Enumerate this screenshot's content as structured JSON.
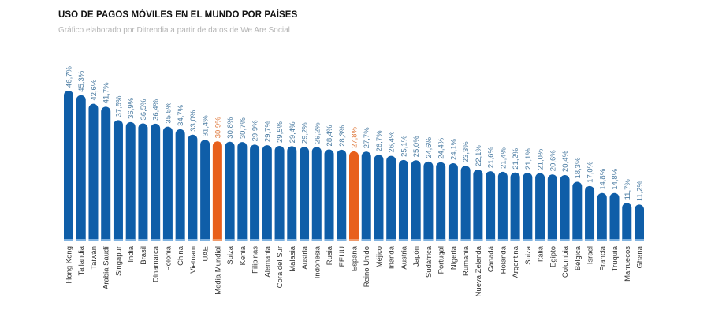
{
  "chart_data": {
    "type": "bar",
    "title": "USO DE PAGOS MÓVILES EN EL MUNDO POR PAÍSES",
    "subtitle": "Gráfico elaborado por Ditrendia a partir de datos de We Are Social",
    "xlabel": "",
    "ylabel": "",
    "ylim": [
      0,
      50
    ],
    "grid": false,
    "categories": [
      "Hong Kong",
      "Tailandia",
      "Taiwán",
      "Arabia Saudí",
      "Singapur",
      "India",
      "Brasil",
      "Dinamarca",
      "Polonia",
      "China",
      "Vietnam",
      "UAE",
      "Media Mundial",
      "Suiza",
      "Kenia",
      "Filipinas",
      "Alemania",
      "Cora del Sur",
      "Malasia",
      "Austria",
      "Indonesia",
      "Rusia",
      "EEUU",
      "España",
      "Reino Unido",
      "Méjico",
      "Irlanda",
      "Austria",
      "Japón",
      "Sudáfrica",
      "Portugal",
      "Nigeria",
      "Rumania",
      "Nueva Zelanda",
      "Canadá",
      "Holanda",
      "Argentina",
      "Suiza",
      "Italia",
      "Egipto",
      "Colombia",
      "Bélgica",
      "Israel",
      "Francia",
      "Truquía",
      "Marruecos",
      "Ghana"
    ],
    "values": [
      46.7,
      45.3,
      42.6,
      41.7,
      37.5,
      36.9,
      36.5,
      36.4,
      35.5,
      34.7,
      33.0,
      31.4,
      30.9,
      30.8,
      30.7,
      29.9,
      29.7,
      29.5,
      29.4,
      29.2,
      29.2,
      28.4,
      28.3,
      27.8,
      27.7,
      26.7,
      26.4,
      25.1,
      25.0,
      24.6,
      24.4,
      24.1,
      23.3,
      22.1,
      21.6,
      21.4,
      21.2,
      21.1,
      21.0,
      20.6,
      20.4,
      18.3,
      17.0,
      14.8,
      14.8,
      11.7,
      11.2
    ],
    "data_labels": [
      "46,7%",
      "45,3%",
      "42,6%",
      "41,7%",
      "37,5%",
      "36,9%",
      "36,5%",
      "36,4%",
      "35,5%",
      "34,7%",
      "33,0%",
      "31,4%",
      "30,9%",
      "30,8%",
      "30,7%",
      "29,9%",
      "29,7%",
      "29,5%",
      "29,4%",
      "29,2%",
      "29,2%",
      "28,4%",
      "28,3%",
      "27,8%",
      "27,7%",
      "26,7%",
      "26,4%",
      "25,1%",
      "25,0%",
      "24,6%",
      "24,4%",
      "24,1%",
      "23,3%",
      "22,1%",
      "21,6%",
      "21,4%",
      "21,2%",
      "21,1%",
      "21,0%",
      "20,6%",
      "20,4%",
      "18,3%",
      "17,0%",
      "14,8%",
      "14,8%",
      "11,7%",
      "11,2%"
    ],
    "highlighted": [
      "Media Mundial",
      "España"
    ],
    "colors": {
      "bar": "#0f5ea8",
      "highlight": "#e8601c",
      "label": "#4d7da3",
      "highlight_label": "#e07b3f"
    }
  }
}
